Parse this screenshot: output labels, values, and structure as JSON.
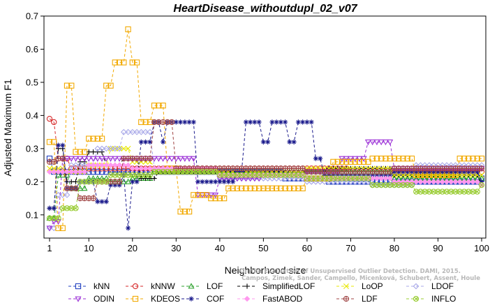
{
  "chart_data": {
    "type": "line",
    "title": "HeartDisease_withoutdupl_02_v07",
    "xlabel": "Neighborhood size",
    "ylabel": "Adjusted Maximum F1",
    "xlim": [
      0,
      100
    ],
    "ylim": [
      0.03,
      0.7
    ],
    "x_ticks": [
      1,
      10,
      20,
      30,
      40,
      50,
      60,
      70,
      80,
      90,
      100
    ],
    "y_ticks": [
      0.1,
      0.2,
      0.3,
      0.4,
      0.5,
      0.6,
      0.7
    ],
    "grid": false,
    "legend_position": "bottom",
    "watermark": [
      "Campos, Zimek, Sander, Campello, Micenková, Schubert, Assent, Houle",
      "On the Evaluation of Unsupervised Outlier Detection. DAMI, 2015."
    ],
    "series": [
      {
        "name": "kNN",
        "color": "#1f3fbf",
        "marker": "square",
        "anchors": [
          [
            1,
            0.27
          ],
          [
            2,
            0.23
          ],
          [
            5,
            0.23
          ],
          [
            20,
            0.23
          ],
          [
            45,
            0.23
          ],
          [
            55,
            0.21
          ],
          [
            65,
            0.2
          ],
          [
            80,
            0.2
          ],
          [
            100,
            0.21
          ]
        ]
      },
      {
        "name": "kNNW",
        "color": "#d62728",
        "marker": "circle",
        "anchors": [
          [
            1,
            0.39
          ],
          [
            2,
            0.38
          ],
          [
            3,
            0.27
          ],
          [
            6,
            0.24
          ],
          [
            30,
            0.24
          ],
          [
            70,
            0.23
          ],
          [
            100,
            0.23
          ]
        ]
      },
      {
        "name": "LOF",
        "color": "#2ca02c",
        "marker": "triangle-up",
        "anchors": [
          [
            1,
            0.09
          ],
          [
            3,
            0.22
          ],
          [
            6,
            0.18
          ],
          [
            10,
            0.21
          ],
          [
            15,
            0.2
          ],
          [
            20,
            0.21
          ],
          [
            25,
            0.23
          ],
          [
            40,
            0.23
          ],
          [
            60,
            0.23
          ],
          [
            80,
            0.21
          ],
          [
            100,
            0.21
          ]
        ]
      },
      {
        "name": "SimplifiedLOF",
        "color": "#000000",
        "marker": "plus",
        "anchors": [
          [
            1,
            0.12
          ],
          [
            3,
            0.3
          ],
          [
            5,
            0.2
          ],
          [
            8,
            0.26
          ],
          [
            10,
            0.29
          ],
          [
            14,
            0.25
          ],
          [
            18,
            0.27
          ],
          [
            22,
            0.21
          ],
          [
            26,
            0.23
          ],
          [
            40,
            0.23
          ],
          [
            55,
            0.23
          ],
          [
            65,
            0.24
          ],
          [
            80,
            0.22
          ],
          [
            100,
            0.19
          ]
        ]
      },
      {
        "name": "LoOP",
        "color": "#e8e800",
        "marker": "x",
        "anchors": [
          [
            1,
            0.24
          ],
          [
            5,
            0.23
          ],
          [
            10,
            0.25
          ],
          [
            15,
            0.3
          ],
          [
            20,
            0.26
          ],
          [
            25,
            0.23
          ],
          [
            40,
            0.23
          ],
          [
            60,
            0.24
          ],
          [
            80,
            0.22
          ],
          [
            100,
            0.22
          ]
        ]
      },
      {
        "name": "LDOF",
        "color": "#a8a8e8",
        "marker": "diamond",
        "anchors": [
          [
            1,
            0.06
          ],
          [
            3,
            0.16
          ],
          [
            6,
            0.25
          ],
          [
            12,
            0.3
          ],
          [
            18,
            0.35
          ],
          [
            21,
            0.35
          ],
          [
            25,
            0.24
          ],
          [
            40,
            0.21
          ],
          [
            60,
            0.2
          ],
          [
            75,
            0.19
          ],
          [
            85,
            0.25
          ],
          [
            100,
            0.25
          ]
        ]
      },
      {
        "name": "ODIN",
        "color": "#9a2ed6",
        "marker": "triangle-down",
        "anchors": [
          [
            1,
            0.06
          ],
          [
            2,
            0.08
          ],
          [
            4,
            0.27
          ],
          [
            10,
            0.27
          ],
          [
            20,
            0.27
          ],
          [
            30,
            0.27
          ],
          [
            35,
            0.16
          ],
          [
            40,
            0.21
          ],
          [
            50,
            0.22
          ],
          [
            60,
            0.23
          ],
          [
            68,
            0.27
          ],
          [
            74,
            0.32
          ],
          [
            78,
            0.32
          ],
          [
            80,
            0.24
          ],
          [
            100,
            0.24
          ]
        ]
      },
      {
        "name": "KDEOS",
        "color": "#f2a900",
        "marker": "square",
        "anchors": [
          [
            1,
            0.32
          ],
          [
            3,
            0.06
          ],
          [
            5,
            0.49
          ],
          [
            7,
            0.29
          ],
          [
            10,
            0.33
          ],
          [
            14,
            0.49
          ],
          [
            16,
            0.56
          ],
          [
            18,
            0.56
          ],
          [
            19,
            0.66
          ],
          [
            20,
            0.56
          ],
          [
            22,
            0.38
          ],
          [
            25,
            0.43
          ],
          [
            28,
            0.24
          ],
          [
            31,
            0.11
          ],
          [
            34,
            0.16
          ],
          [
            38,
            0.15
          ],
          [
            42,
            0.18
          ],
          [
            48,
            0.18
          ],
          [
            52,
            0.18
          ],
          [
            56,
            0.18
          ],
          [
            60,
            0.21
          ],
          [
            66,
            0.26
          ],
          [
            75,
            0.27
          ],
          [
            85,
            0.22
          ],
          [
            95,
            0.27
          ],
          [
            100,
            0.27
          ]
        ]
      },
      {
        "name": "COF",
        "color": "#1a1a8c",
        "marker": "asterisk",
        "anchors": [
          [
            1,
            0.12
          ],
          [
            3,
            0.31
          ],
          [
            5,
            0.18
          ],
          [
            8,
            0.2
          ],
          [
            12,
            0.14
          ],
          [
            15,
            0.19
          ],
          [
            18,
            0.22
          ],
          [
            19,
            0.06
          ],
          [
            20,
            0.2
          ],
          [
            22,
            0.32
          ],
          [
            25,
            0.38
          ],
          [
            27,
            0.32
          ],
          [
            28,
            0.38
          ],
          [
            33,
            0.38
          ],
          [
            35,
            0.2
          ],
          [
            40,
            0.2
          ],
          [
            44,
            0.23
          ],
          [
            46,
            0.38
          ],
          [
            50,
            0.32
          ],
          [
            52,
            0.38
          ],
          [
            56,
            0.32
          ],
          [
            58,
            0.38
          ],
          [
            62,
            0.27
          ],
          [
            64,
            0.22
          ],
          [
            80,
            0.23
          ],
          [
            100,
            0.2
          ]
        ]
      },
      {
        "name": "FastABOD",
        "color": "#ff99ee",
        "marker": "diamond-filled",
        "anchors": [
          [
            1,
            0.23
          ],
          [
            10,
            0.25
          ],
          [
            20,
            0.24
          ],
          [
            40,
            0.22
          ],
          [
            60,
            0.21
          ],
          [
            80,
            0.2
          ],
          [
            100,
            0.19
          ]
        ]
      },
      {
        "name": "LDF",
        "color": "#a04545",
        "marker": "circle-plus",
        "anchors": [
          [
            1,
            0.26
          ],
          [
            3,
            0.27
          ],
          [
            5,
            0.18
          ],
          [
            8,
            0.15
          ],
          [
            12,
            0.2
          ],
          [
            18,
            0.27
          ],
          [
            25,
            0.38
          ],
          [
            30,
            0.24
          ],
          [
            45,
            0.24
          ],
          [
            60,
            0.23
          ],
          [
            80,
            0.24
          ],
          [
            100,
            0.24
          ]
        ]
      },
      {
        "name": "INFLO",
        "color": "#99cc33",
        "marker": "circle-x",
        "anchors": [
          [
            1,
            0.09
          ],
          [
            4,
            0.12
          ],
          [
            8,
            0.2
          ],
          [
            15,
            0.22
          ],
          [
            25,
            0.23
          ],
          [
            40,
            0.22
          ],
          [
            60,
            0.21
          ],
          [
            75,
            0.19
          ],
          [
            85,
            0.17
          ],
          [
            95,
            0.17
          ],
          [
            100,
            0.19
          ]
        ]
      }
    ]
  }
}
